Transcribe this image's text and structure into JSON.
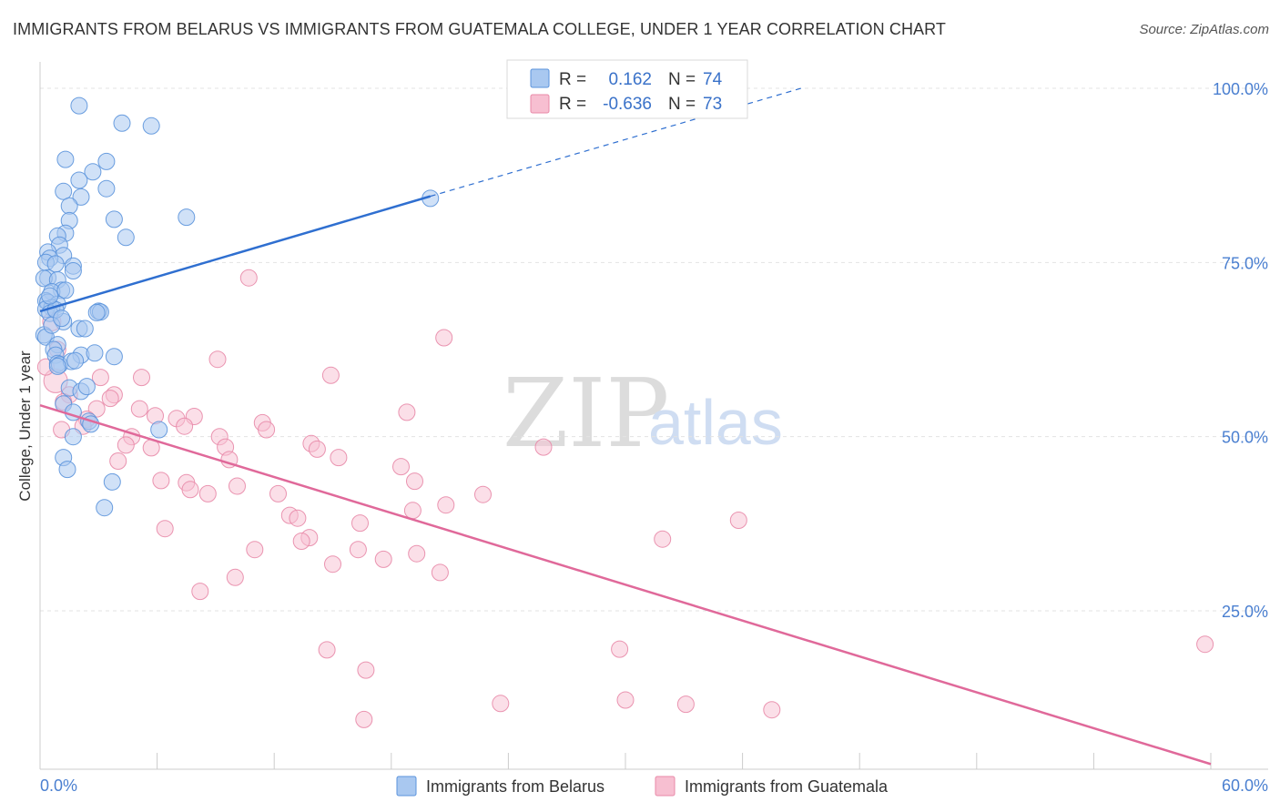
{
  "header": {
    "title": "IMMIGRANTS FROM BELARUS VS IMMIGRANTS FROM GUATEMALA COLLEGE, UNDER 1 YEAR CORRELATION CHART",
    "source": "Source: ZipAtlas.com"
  },
  "watermark": {
    "zip": "ZIP",
    "atlas": "atlas"
  },
  "stats": {
    "r_label": "R =",
    "n_label": "N =",
    "belarus": {
      "r": "0.162",
      "n": "74"
    },
    "guatemala": {
      "r": "-0.636",
      "n": "73"
    }
  },
  "colors": {
    "belarus_fill": "#a9c8f0",
    "belarus_stroke": "#5b93dc",
    "belarus_line": "#2f6fd0",
    "guatemala_fill": "#f7bfd1",
    "guatemala_stroke": "#e88aa8",
    "guatemala_line": "#e0699a",
    "grid": "#e3e3e3",
    "tick_text": "#4a7fd0"
  },
  "chart_data": {
    "type": "scatter",
    "title": "IMMIGRANTS FROM BELARUS VS IMMIGRANTS FROM GUATEMALA COLLEGE, UNDER 1 YEAR CORRELATION CHART",
    "xlabel": "",
    "ylabel": "College, Under 1 year",
    "xlim": [
      0,
      60
    ],
    "ylim": [
      0,
      105
    ],
    "x_tick_labels": {
      "min": "0.0%",
      "max": "60.0%"
    },
    "y_ticks": [
      {
        "value": 100,
        "label": "100.0%"
      },
      {
        "value": 75,
        "label": "75.0%"
      },
      {
        "value": 50,
        "label": "50.0%"
      },
      {
        "value": 25,
        "label": "25.0%"
      }
    ],
    "legend_position": "bottom-center",
    "series": [
      {
        "name": "Immigrants from Belarus",
        "r": 0.162,
        "n": 74,
        "trend": {
          "x0": 0.0,
          "y0": 68.0,
          "x1": 20.0,
          "y1": 84.5,
          "dash_x1": 39.0,
          "dash_y1": 100.0
        },
        "points": [
          [
            2.0,
            97.5
          ],
          [
            4.2,
            95.0
          ],
          [
            5.7,
            94.6
          ],
          [
            1.3,
            89.8
          ],
          [
            2.7,
            88.0
          ],
          [
            3.4,
            89.5
          ],
          [
            2.0,
            86.8
          ],
          [
            1.2,
            85.2
          ],
          [
            3.4,
            85.6
          ],
          [
            2.1,
            84.4
          ],
          [
            1.5,
            83.1
          ],
          [
            3.8,
            81.2
          ],
          [
            7.5,
            81.5
          ],
          [
            1.5,
            81.0
          ],
          [
            1.3,
            79.2
          ],
          [
            4.4,
            78.6
          ],
          [
            0.9,
            78.8
          ],
          [
            1.0,
            77.5
          ],
          [
            0.4,
            76.5
          ],
          [
            1.2,
            76.0
          ],
          [
            0.5,
            75.6
          ],
          [
            0.3,
            75.0
          ],
          [
            0.8,
            74.8
          ],
          [
            1.7,
            74.5
          ],
          [
            1.7,
            73.8
          ],
          [
            0.4,
            72.8
          ],
          [
            0.2,
            72.7
          ],
          [
            0.9,
            72.5
          ],
          [
            1.1,
            71.0
          ],
          [
            0.6,
            70.8
          ],
          [
            1.3,
            71.0
          ],
          [
            0.3,
            69.5
          ],
          [
            0.4,
            69.3
          ],
          [
            0.9,
            69.0
          ],
          [
            0.6,
            68.5
          ],
          [
            0.3,
            68.3
          ],
          [
            3.0,
            68.0
          ],
          [
            3.1,
            67.9
          ],
          [
            2.9,
            67.8
          ],
          [
            0.5,
            67.7
          ],
          [
            1.2,
            66.5
          ],
          [
            2.0,
            65.5
          ],
          [
            2.3,
            65.5
          ],
          [
            0.2,
            64.6
          ],
          [
            0.3,
            64.3
          ],
          [
            0.9,
            63.2
          ],
          [
            0.7,
            62.5
          ],
          [
            0.8,
            61.7
          ],
          [
            2.1,
            61.7
          ],
          [
            3.8,
            61.5
          ],
          [
            0.9,
            60.5
          ],
          [
            1.0,
            60.3
          ],
          [
            1.6,
            60.8
          ],
          [
            1.8,
            60.9
          ],
          [
            0.9,
            60.1
          ],
          [
            1.5,
            57.0
          ],
          [
            2.1,
            56.5
          ],
          [
            1.2,
            54.7
          ],
          [
            1.7,
            53.5
          ],
          [
            2.5,
            52.2
          ],
          [
            2.6,
            51.8
          ],
          [
            6.1,
            51.0
          ],
          [
            1.7,
            50.0
          ],
          [
            1.2,
            47.0
          ],
          [
            1.4,
            45.3
          ],
          [
            3.7,
            43.5
          ],
          [
            3.3,
            39.8
          ],
          [
            20.0,
            84.2
          ],
          [
            0.8,
            68.2
          ],
          [
            0.5,
            70.2
          ],
          [
            2.8,
            62.0
          ],
          [
            0.6,
            66.0
          ],
          [
            1.1,
            67.0
          ],
          [
            2.4,
            57.2
          ]
        ]
      },
      {
        "name": "Immigrants from Guatemala",
        "r": -0.636,
        "n": 73,
        "trend": {
          "x0": 0.0,
          "y0": 54.5,
          "x1": 60.0,
          "y1": 3.0
        },
        "points": [
          [
            10.7,
            72.8
          ],
          [
            20.7,
            64.2
          ],
          [
            0.6,
            66.5
          ],
          [
            0.9,
            62.5
          ],
          [
            9.1,
            61.1
          ],
          [
            14.9,
            58.8
          ],
          [
            3.1,
            58.5
          ],
          [
            5.2,
            58.5
          ],
          [
            0.8,
            58.0
          ],
          [
            1.5,
            56.0
          ],
          [
            3.8,
            56.0
          ],
          [
            3.6,
            55.5
          ],
          [
            1.2,
            55.0
          ],
          [
            2.9,
            54.0
          ],
          [
            5.1,
            54.0
          ],
          [
            18.8,
            53.5
          ],
          [
            5.9,
            53.0
          ],
          [
            7.9,
            52.9
          ],
          [
            2.4,
            52.5
          ],
          [
            7.0,
            52.6
          ],
          [
            11.4,
            52.0
          ],
          [
            2.2,
            51.5
          ],
          [
            7.4,
            51.5
          ],
          [
            11.6,
            51.0
          ],
          [
            4.7,
            50.0
          ],
          [
            9.2,
            50.0
          ],
          [
            13.9,
            49.0
          ],
          [
            4.4,
            48.8
          ],
          [
            14.2,
            48.2
          ],
          [
            9.5,
            48.5
          ],
          [
            25.8,
            48.5
          ],
          [
            5.7,
            48.4
          ],
          [
            9.7,
            46.7
          ],
          [
            15.3,
            47.0
          ],
          [
            4.0,
            46.5
          ],
          [
            18.5,
            45.7
          ],
          [
            6.2,
            43.7
          ],
          [
            7.5,
            43.4
          ],
          [
            19.2,
            43.6
          ],
          [
            10.1,
            42.9
          ],
          [
            7.7,
            42.4
          ],
          [
            8.6,
            41.8
          ],
          [
            12.2,
            41.8
          ],
          [
            22.7,
            41.7
          ],
          [
            20.8,
            40.2
          ],
          [
            19.1,
            39.4
          ],
          [
            12.8,
            38.7
          ],
          [
            13.2,
            38.3
          ],
          [
            35.8,
            38.0
          ],
          [
            16.4,
            37.6
          ],
          [
            6.4,
            36.8
          ],
          [
            13.8,
            35.5
          ],
          [
            31.9,
            35.3
          ],
          [
            13.4,
            35.0
          ],
          [
            11.0,
            33.8
          ],
          [
            16.3,
            33.8
          ],
          [
            19.3,
            33.2
          ],
          [
            17.6,
            32.4
          ],
          [
            15.0,
            31.7
          ],
          [
            20.5,
            30.5
          ],
          [
            10.0,
            29.8
          ],
          [
            8.2,
            27.8
          ],
          [
            14.7,
            19.4
          ],
          [
            29.7,
            19.5
          ],
          [
            16.7,
            16.5
          ],
          [
            59.7,
            20.2
          ],
          [
            23.6,
            11.7
          ],
          [
            30.0,
            12.2
          ],
          [
            33.1,
            11.6
          ],
          [
            37.5,
            10.8
          ],
          [
            16.6,
            9.4
          ],
          [
            1.1,
            51.0
          ],
          [
            0.3,
            60.0
          ]
        ]
      }
    ]
  },
  "legend": {
    "items": [
      {
        "label": "Immigrants from Belarus"
      },
      {
        "label": "Immigrants from Guatemala"
      }
    ]
  }
}
